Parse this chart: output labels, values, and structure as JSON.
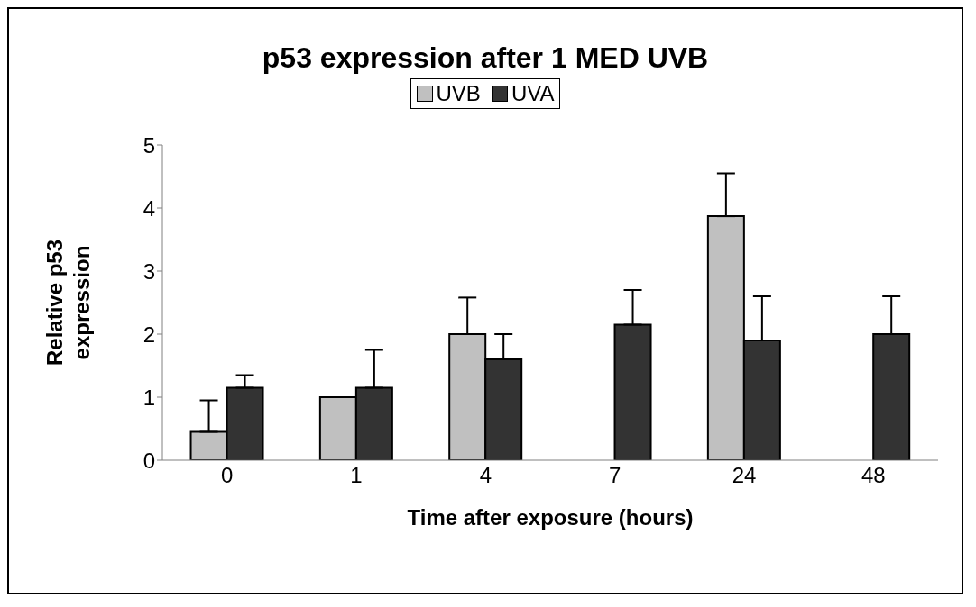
{
  "chart_data": {
    "type": "bar",
    "title": "p53 expression after 1 MED UVB",
    "xlabel": "Time after exposure (hours)",
    "ylabel": "Relative p53 expression",
    "categories": [
      "0",
      "1",
      "4",
      "7",
      "24",
      "48"
    ],
    "series": [
      {
        "name": "UVB",
        "color": "#c0c0c0",
        "values": [
          0.45,
          1.0,
          2.0,
          null,
          3.87,
          null
        ],
        "errors": [
          [
            0.45,
            0.95
          ],
          null,
          [
            2.0,
            2.58
          ],
          null,
          [
            3.87,
            4.55
          ],
          null
        ]
      },
      {
        "name": "UVA",
        "color": "#333333",
        "values": [
          1.15,
          1.15,
          1.6,
          2.15,
          1.9,
          2.0
        ],
        "errors": [
          [
            1.15,
            1.35
          ],
          [
            1.15,
            1.75
          ],
          [
            1.6,
            2.0
          ],
          [
            2.15,
            2.7
          ],
          [
            1.9,
            2.6
          ],
          [
            2.0,
            2.6
          ]
        ]
      }
    ],
    "ylim": [
      0,
      5
    ],
    "yticks": [
      0,
      1,
      2,
      3,
      4,
      5
    ],
    "grid": false,
    "legend": "top"
  }
}
